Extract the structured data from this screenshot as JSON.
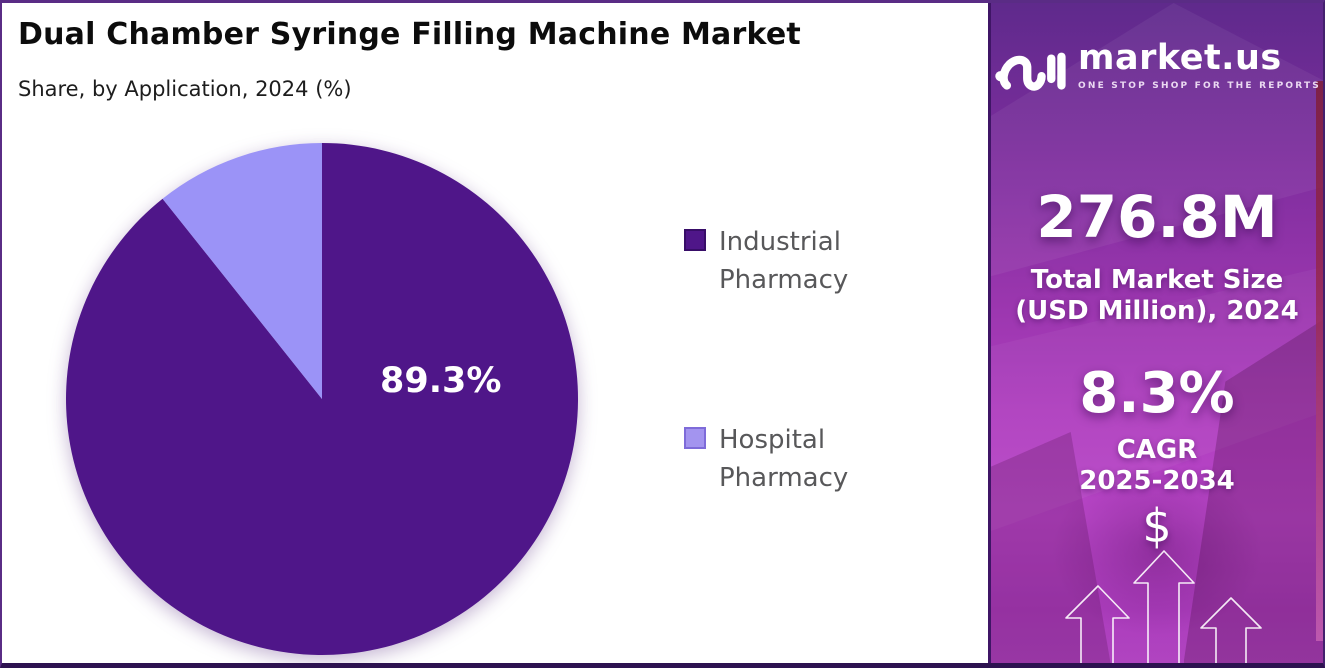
{
  "chart_data": {
    "type": "pie",
    "title": "Dual Chamber Syringe Filling Machine Market",
    "subtitle": "Share, by Application, 2024 (%)",
    "categories": [
      "Industrial Pharmacy",
      "Hospital Pharmacy"
    ],
    "values": [
      89.3,
      10.7
    ],
    "colors": [
      "#4F1689",
      "#9B93F7"
    ],
    "label_text": "89.3%",
    "start_angle_deg": 0,
    "direction": "clockwise",
    "legend_position": "right",
    "grid": false
  },
  "legend": {
    "items": [
      {
        "label": "Industrial Pharmacy",
        "color": "#4F1689",
        "border": "#380d68"
      },
      {
        "label": "Hospital Pharmacy",
        "color": "#A394EF",
        "border": "#7e6bd9"
      }
    ]
  },
  "sidebar": {
    "logo": {
      "brand": "market.us",
      "tagline": "ONE STOP SHOP FOR THE REPORTS"
    },
    "market_size": {
      "value": "276.8M",
      "line1": "Total Market Size",
      "line2": "(USD Million), 2024"
    },
    "cagr": {
      "value": "8.3%",
      "line1": "CAGR",
      "line2": "2025-2034"
    },
    "currency_symbol": "$",
    "icons": {
      "growth_arrows": "three outlined up arrows",
      "currency": "dollar sign"
    }
  },
  "colors": {
    "pie_industrial": "#4F1689",
    "pie_hospital": "#9B93F7",
    "sidebar_top": "#5F2A8C",
    "sidebar_bottom": "#B044C0",
    "frame_border": "#5A2C85",
    "bottom_border": "#2D1250",
    "legend_text": "#58585A",
    "text_white": "#FFFFFF"
  }
}
